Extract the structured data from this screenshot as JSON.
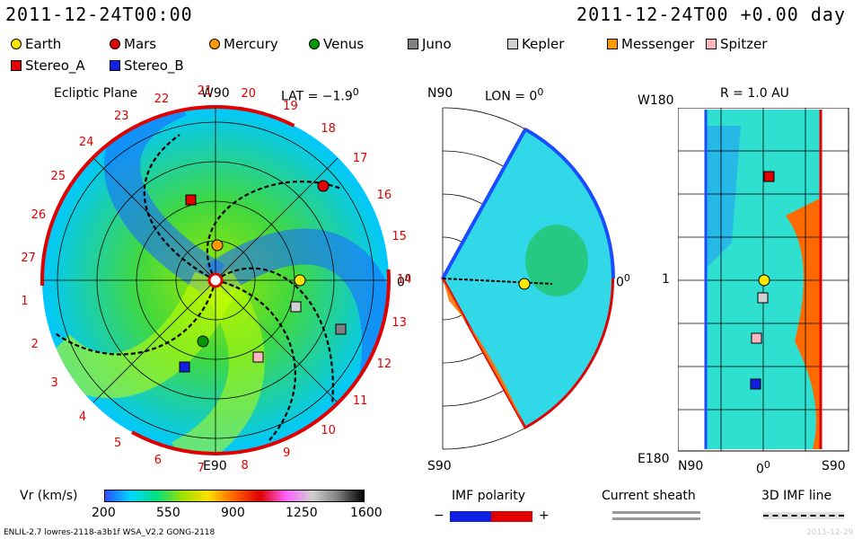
{
  "header": {
    "left": "2011-12-24T00:00",
    "right": "2011-12-24T00 +0.00 day"
  },
  "legend": [
    {
      "name": "Earth",
      "color": "#ffe600",
      "shape": "circle"
    },
    {
      "name": "Mars",
      "color": "#e00000",
      "shape": "circle"
    },
    {
      "name": "Mercury",
      "color": "#ff9a00",
      "shape": "circle"
    },
    {
      "name": "Venus",
      "color": "#009900",
      "shape": "circle"
    },
    {
      "name": "Juno",
      "color": "#808080",
      "shape": "square"
    },
    {
      "name": "Kepler",
      "color": "#d0d0d0",
      "shape": "square"
    },
    {
      "name": "Messenger",
      "color": "#ff9a00",
      "shape": "square"
    },
    {
      "name": "Spitzer",
      "color": "#ffb6c1",
      "shape": "square"
    },
    {
      "name": "Stereo_A",
      "color": "#e00000",
      "shape": "square"
    },
    {
      "name": "Stereo_B",
      "color": "#1020e0",
      "shape": "square"
    }
  ],
  "panel1": {
    "title": "Ecliptic Plane",
    "top": "W90",
    "bottom": "E90",
    "right": "0",
    "right_sup": "0",
    "lat": "LAT = −1.9",
    "lat_sup": "0",
    "ticks": [
      "20",
      "21",
      "22",
      "23",
      "24",
      "25",
      "26",
      "27",
      "1",
      "2",
      "3",
      "4",
      "5",
      "6",
      "7",
      "8",
      "9",
      "10",
      "11",
      "12",
      "13",
      "14",
      "15",
      "16",
      "17",
      "18",
      "19"
    ]
  },
  "panel2": {
    "title": "LON = 0",
    "title_sup": "0",
    "top": "N90",
    "bottom": "S90",
    "right": "0",
    "right_sup": "0"
  },
  "panel3": {
    "title": "R = 1.0 AU",
    "top_left": "W180",
    "mid_left": "1",
    "bottom_left": "E180",
    "x_ticks": [
      "N90",
      "0",
      "S90"
    ],
    "x_sup": "0"
  },
  "colorbar": {
    "label": "Vr (km/s)",
    "ticks": [
      "200",
      "550",
      "900",
      "1250",
      "1600"
    ],
    "colors": [
      "#3050ff",
      "#00d8ff",
      "#00e080",
      "#a0e000",
      "#ffe000",
      "#ff6000",
      "#e00000",
      "#ff60ff",
      "#d0d0d0",
      "#808080",
      "#000000"
    ]
  },
  "imf": {
    "label": "IMF polarity",
    "minus": "−",
    "plus": "+"
  },
  "sheath": {
    "label": "Current sheath"
  },
  "imfline": {
    "label": "3D IMF line"
  },
  "footer": {
    "left": "ENLIL-2.7 lowres-2118-a3b1f WSA_V2.2 GONG-2118",
    "right": "2011-12-29"
  }
}
